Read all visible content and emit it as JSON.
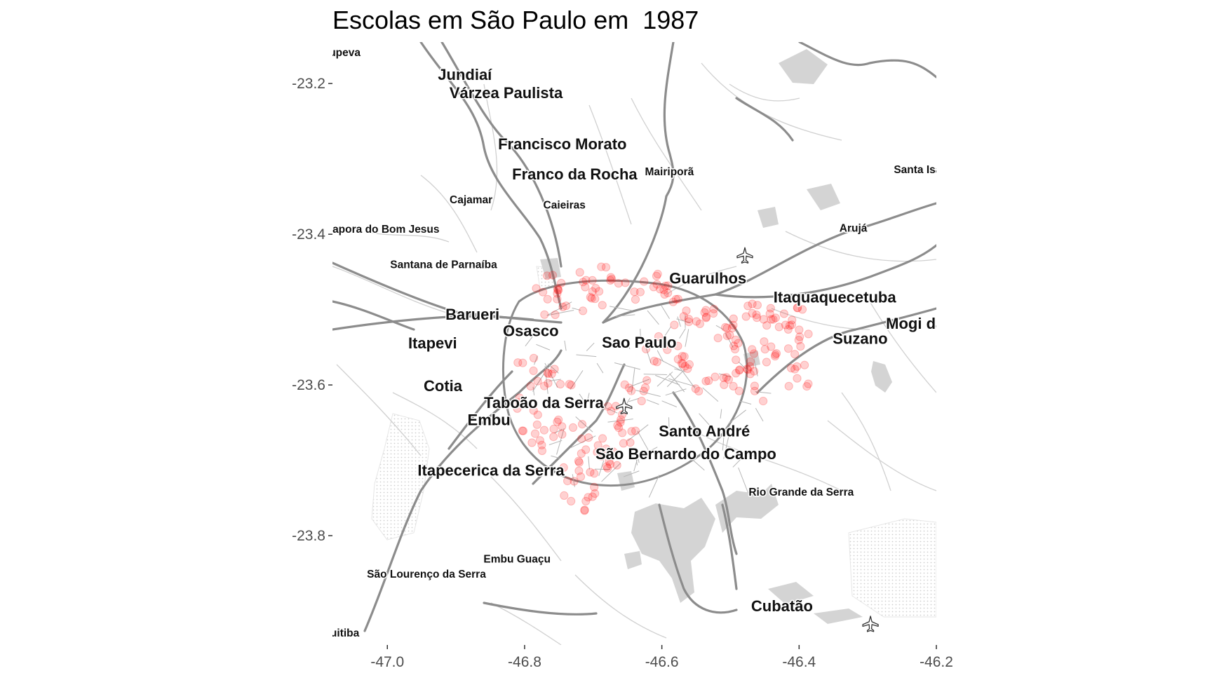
{
  "title": "Escolas em São Paulo em  1987",
  "map": {
    "x_ticks": [
      {
        "value": -47.0,
        "label": "-47.0"
      },
      {
        "value": -46.8,
        "label": "-46.8"
      },
      {
        "value": -46.6,
        "label": "-46.6"
      },
      {
        "value": -46.4,
        "label": "-46.4"
      },
      {
        "value": -46.2,
        "label": "-46.2"
      }
    ],
    "y_ticks": [
      {
        "value": -23.2,
        "label": "-23.2"
      },
      {
        "value": -23.4,
        "label": "-23.4"
      },
      {
        "value": -23.6,
        "label": "-23.6"
      },
      {
        "value": -23.8,
        "label": "-23.8"
      }
    ],
    "xlim": [
      -47.08,
      -46.2
    ],
    "ylim": [
      -23.945,
      -23.145
    ],
    "point_color": "#ff0000",
    "road_color": "#8c8c8c",
    "water_color": "#d4d4d4",
    "places": [
      {
        "name": "upeva",
        "lon": -47.062,
        "lat": -23.16,
        "size": "small"
      },
      {
        "name": "Jundiaí",
        "lon": -46.887,
        "lat": -23.19,
        "size": "large"
      },
      {
        "name": "Várzea Paulista",
        "lon": -46.827,
        "lat": -23.214,
        "size": "large"
      },
      {
        "name": "Francisco Morato",
        "lon": -46.745,
        "lat": -23.282,
        "size": "large"
      },
      {
        "name": "Franco da Rocha",
        "lon": -46.727,
        "lat": -23.322,
        "size": "large"
      },
      {
        "name": "Mairiporã",
        "lon": -46.589,
        "lat": -23.318,
        "size": "small"
      },
      {
        "name": "Santa Isal",
        "lon": -46.225,
        "lat": -23.315,
        "size": "small"
      },
      {
        "name": "Cajamar",
        "lon": -46.878,
        "lat": -23.355,
        "size": "small"
      },
      {
        "name": "Caieiras",
        "lon": -46.742,
        "lat": -23.362,
        "size": "small"
      },
      {
        "name": "apora do Bom Jesus",
        "lon": -47.002,
        "lat": -23.394,
        "size": "small"
      },
      {
        "name": "Arujá",
        "lon": -46.321,
        "lat": -23.393,
        "size": "small"
      },
      {
        "name": "Santana de Parnaíba",
        "lon": -46.918,
        "lat": -23.441,
        "size": "small"
      },
      {
        "name": "Guarulhos",
        "lon": -46.533,
        "lat": -23.46,
        "size": "large"
      },
      {
        "name": "Itaquaquecetuba",
        "lon": -46.348,
        "lat": -23.485,
        "size": "large"
      },
      {
        "name": "Barueri",
        "lon": -46.876,
        "lat": -23.508,
        "size": "large"
      },
      {
        "name": "Mogi da",
        "lon": -46.231,
        "lat": -23.52,
        "size": "large"
      },
      {
        "name": "Osasco",
        "lon": -46.791,
        "lat": -23.53,
        "size": "large"
      },
      {
        "name": "Itapevi",
        "lon": -46.934,
        "lat": -23.546,
        "size": "large"
      },
      {
        "name": "Sao Paulo",
        "lon": -46.633,
        "lat": -23.545,
        "size": "large"
      },
      {
        "name": "Suzano",
        "lon": -46.311,
        "lat": -23.54,
        "size": "large"
      },
      {
        "name": "Cotia",
        "lon": -46.919,
        "lat": -23.603,
        "size": "large"
      },
      {
        "name": "Taboão da Serra",
        "lon": -46.772,
        "lat": -23.625,
        "size": "large"
      },
      {
        "name": "Embu",
        "lon": -46.852,
        "lat": -23.648,
        "size": "large"
      },
      {
        "name": "Santo André",
        "lon": -46.538,
        "lat": -23.663,
        "size": "large"
      },
      {
        "name": "São Bernardo do Campo",
        "lon": -46.565,
        "lat": -23.693,
        "size": "large"
      },
      {
        "name": "Itapecerica da Serra",
        "lon": -46.849,
        "lat": -23.715,
        "size": "large"
      },
      {
        "name": "Rio Grande da Serra",
        "lon": -46.397,
        "lat": -23.743,
        "size": "small"
      },
      {
        "name": "Embu Guaçu",
        "lon": -46.811,
        "lat": -23.832,
        "size": "small"
      },
      {
        "name": "São Lourenço da Serra",
        "lon": -46.943,
        "lat": -23.852,
        "size": "small"
      },
      {
        "name": "Cubatão",
        "lon": -46.425,
        "lat": -23.895,
        "size": "large"
      },
      {
        "name": "uitiba",
        "lon": -47.062,
        "lat": -23.93,
        "size": "small"
      }
    ],
    "airports": [
      {
        "name": "airport-guarulhos",
        "lon": -46.479,
        "lat": -23.428
      },
      {
        "name": "airport-congonhas",
        "lon": -46.655,
        "lat": -23.628
      },
      {
        "name": "airport-south-east",
        "lon": -46.296,
        "lat": -23.917
      }
    ]
  }
}
